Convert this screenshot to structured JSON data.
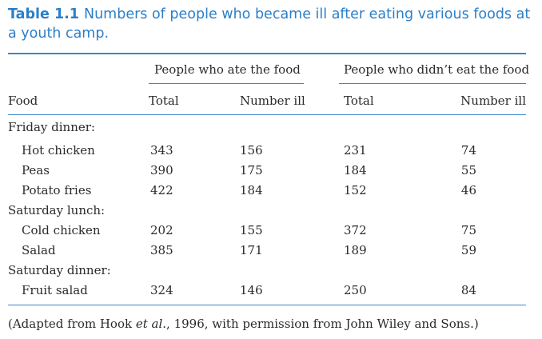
{
  "table": {
    "number": "Table 1.1",
    "caption": "Numbers of people who became ill after eating various foods at a youth camp.",
    "group_headers": [
      "People who ate the food",
      "People who didn’t eat the food"
    ],
    "column_headers": [
      "Food",
      "Total",
      "Number ill",
      "Total",
      "Number ill"
    ],
    "rows": [
      {
        "type": "section",
        "label": "Friday dinner:"
      },
      {
        "type": "item",
        "food": "Hot chicken",
        "ate_total": "343",
        "ate_ill": "156",
        "not_total": "231",
        "not_ill": "74"
      },
      {
        "type": "item",
        "food": "Peas",
        "ate_total": "390",
        "ate_ill": "175",
        "not_total": "184",
        "not_ill": "55"
      },
      {
        "type": "item",
        "food": "Potato fries",
        "ate_total": "422",
        "ate_ill": "184",
        "not_total": "152",
        "not_ill": "46"
      },
      {
        "type": "section",
        "label": "Saturday lunch:"
      },
      {
        "type": "item",
        "food": "Cold chicken",
        "ate_total": "202",
        "ate_ill": "155",
        "not_total": "372",
        "not_ill": "75"
      },
      {
        "type": "item",
        "food": "Salad",
        "ate_total": "385",
        "ate_ill": "171",
        "not_total": "189",
        "not_ill": "59"
      },
      {
        "type": "section",
        "label": "Saturday dinner:"
      },
      {
        "type": "item",
        "food": "Fruit salad",
        "ate_total": "324",
        "ate_ill": "146",
        "not_total": "250",
        "not_ill": "84"
      }
    ],
    "footnote": {
      "before": "(Adapted from Hook ",
      "italic": "et al.",
      "after": ", 1996, with permission from John Wiley and Sons.)"
    },
    "accent_color": "#2b7fc8"
  }
}
